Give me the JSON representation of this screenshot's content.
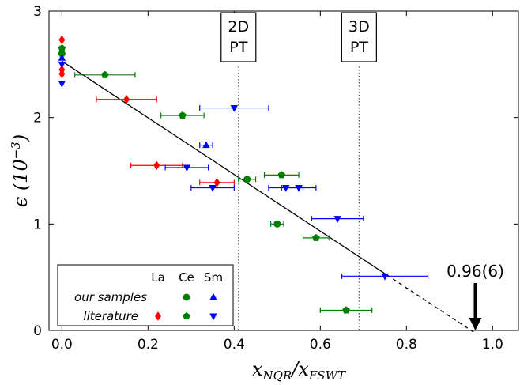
{
  "chart_data": {
    "type": "scatter",
    "xlabel": "x_{NQR}/x_{FSWT}",
    "ylabel": "ε (10⁻³)",
    "xlim": [
      -0.03,
      1.06
    ],
    "ylim": [
      0,
      3
    ],
    "x_ticks": [
      "0.0",
      "0.2",
      "0.4",
      "0.6",
      "0.8",
      "1.0"
    ],
    "y_ticks": [
      "0",
      "1",
      "2",
      "3"
    ],
    "grid": false,
    "legend": {
      "position": "bottom-left",
      "columns": [
        "La",
        "Ce",
        "Sm"
      ],
      "rows": [
        "our samples",
        "literature"
      ]
    },
    "vlines": [
      {
        "x": 0.41,
        "label_lines": [
          "2D",
          "PT"
        ]
      },
      {
        "x": 0.69,
        "label_lines": [
          "3D",
          "PT"
        ]
      }
    ],
    "fit_line": {
      "x0": 0.0,
      "y0": 2.53,
      "x1": 0.755,
      "y1": 0.52,
      "extend_to_x": 0.96
    },
    "annotation": {
      "text": "0.96(6)",
      "x": 0.96,
      "y": 0
    },
    "series": [
      {
        "element": "Ce",
        "kind": "our samples",
        "marker": "circle",
        "color": "#008000",
        "points": [
          [
            0.0,
            2.6,
            0,
            0
          ],
          [
            0.43,
            1.42,
            0.02,
            0.02
          ],
          [
            0.5,
            1.0,
            0.015,
            0.015
          ]
        ]
      },
      {
        "element": "Sm",
        "kind": "our samples",
        "marker": "triangle-up",
        "color": "#0000ff",
        "points": [
          [
            0.0,
            2.56,
            0,
            0
          ],
          [
            0.335,
            1.74,
            0.015,
            0.015
          ]
        ]
      },
      {
        "element": "La",
        "kind": "literature",
        "marker": "diamond",
        "color": "#ff0000",
        "points": [
          [
            0.0,
            2.73,
            0,
            0
          ],
          [
            0.0,
            2.45,
            0,
            0
          ],
          [
            0.0,
            2.41,
            0,
            0
          ],
          [
            0.15,
            2.17,
            0.07,
            0.07
          ],
          [
            0.22,
            1.55,
            0.06,
            0.06
          ],
          [
            0.36,
            1.39,
            0.04,
            0.04
          ]
        ]
      },
      {
        "element": "Ce",
        "kind": "literature",
        "marker": "pentagon",
        "color": "#008000",
        "points": [
          [
            0.0,
            2.65,
            0,
            0
          ],
          [
            0.1,
            2.4,
            0.07,
            0.07
          ],
          [
            0.28,
            2.02,
            0.05,
            0.05
          ],
          [
            0.51,
            1.46,
            0.04,
            0.04
          ],
          [
            0.59,
            0.87,
            0.03,
            0.03
          ],
          [
            0.66,
            0.19,
            0.06,
            0.06
          ]
        ]
      },
      {
        "element": "Sm",
        "kind": "literature",
        "marker": "triangle-down",
        "color": "#0000ff",
        "points": [
          [
            0.0,
            2.5,
            0,
            0
          ],
          [
            0.0,
            2.32,
            0,
            0
          ],
          [
            0.4,
            2.09,
            0.08,
            0.08
          ],
          [
            0.29,
            1.53,
            0.05,
            0.05
          ],
          [
            0.52,
            1.34,
            0.04,
            0.04
          ],
          [
            0.55,
            1.34,
            0.04,
            0.04
          ],
          [
            0.35,
            1.34,
            0.05,
            0.05
          ],
          [
            0.64,
            1.05,
            0.06,
            0.06
          ],
          [
            0.75,
            0.51,
            0.1,
            0.1
          ]
        ]
      }
    ]
  }
}
